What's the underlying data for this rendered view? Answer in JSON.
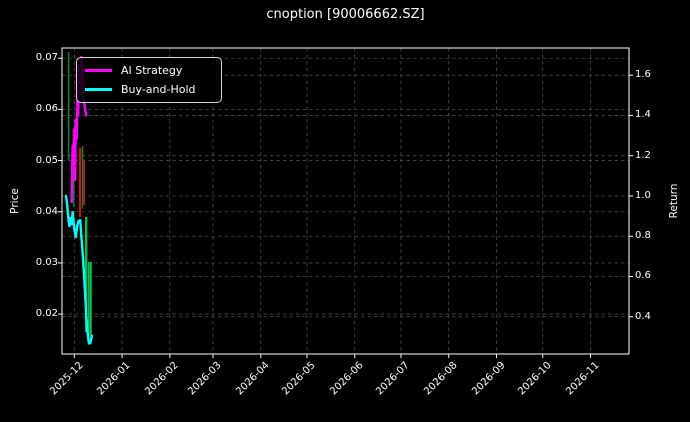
{
  "title": "cnoption [90006662.SZ]",
  "chart_data": {
    "type": "line",
    "overlays": [
      "candlestick_wicks"
    ],
    "title": "cnoption [90006662.SZ]",
    "grid": "dashed, both axes",
    "legend_position": "upper left",
    "axes": {
      "x": {
        "tick_labels": [
          "2025-12",
          "2026-01",
          "2026-02",
          "2026-03",
          "2026-04",
          "2026-05",
          "2026-06",
          "2026-07",
          "2026-08",
          "2026-09",
          "2026-10",
          "2026-11"
        ],
        "tick_days": [
          8,
          39,
          70,
          98,
          129,
          159,
          190,
          220,
          251,
          282,
          312,
          343
        ],
        "range_days": [
          0,
          368
        ],
        "tick_rotation_deg": 45
      },
      "left": {
        "label": "Price",
        "tick_labels": [
          "0.07",
          "0.06",
          "0.05",
          "0.04",
          "0.03",
          "0.02"
        ],
        "tick_values": [
          0.07,
          0.06,
          0.05,
          0.04,
          0.03,
          0.02
        ],
        "range": [
          0.0122,
          0.072
        ]
      },
      "right": {
        "label": "Return",
        "tick_labels": [
          "1.6",
          "1.4",
          "1.2",
          "1.0",
          "0.8",
          "0.6",
          "0.4"
        ],
        "tick_values": [
          1.6,
          1.4,
          1.2,
          1.0,
          0.8,
          0.6,
          0.4
        ],
        "range": [
          0.215,
          1.735
        ]
      }
    },
    "legend": {
      "items": [
        {
          "label": "AI Strategy",
          "color": "#ff00ff"
        },
        {
          "label": "Buy-and-Hold",
          "color": "#00ffff"
        }
      ]
    },
    "series": [
      {
        "name": "AI Strategy",
        "color": "#ff00ff",
        "axis": "right",
        "linewidth": 2.4,
        "points": [
          [
            6.2,
            0.97
          ],
          [
            6.9,
            1.25
          ],
          [
            7.2,
            1.13
          ],
          [
            7.9,
            1.33
          ],
          [
            8.2,
            1.2
          ],
          [
            8.5,
            1.08
          ],
          [
            8.9,
            1.38
          ],
          [
            9.5,
            1.28
          ],
          [
            10.2,
            1.52
          ],
          [
            10.5,
            1.4
          ],
          [
            11.2,
            1.65
          ],
          [
            11.8,
            1.52
          ],
          [
            12.5,
            1.69
          ],
          [
            13.4,
            1.65
          ],
          [
            14.1,
            1.48
          ],
          [
            15.7,
            1.4
          ]
        ]
      },
      {
        "name": "Buy-and-Hold",
        "color": "#00ffff",
        "axis": "right",
        "linewidth": 2.4,
        "points": [
          [
            2.6,
            1.0
          ],
          [
            3.3,
            0.96
          ],
          [
            4.3,
            0.875
          ],
          [
            4.9,
            0.85
          ],
          [
            5.6,
            0.89
          ],
          [
            6.2,
            0.86
          ],
          [
            6.9,
            0.92
          ],
          [
            7.9,
            0.84
          ],
          [
            8.9,
            0.795
          ],
          [
            9.8,
            0.85
          ],
          [
            10.8,
            0.875
          ],
          [
            11.8,
            0.88
          ],
          [
            12.5,
            0.8
          ],
          [
            13.4,
            0.72
          ],
          [
            14.4,
            0.6
          ],
          [
            15.4,
            0.46
          ],
          [
            16.4,
            0.33
          ],
          [
            17.4,
            0.27
          ],
          [
            18.4,
            0.268
          ],
          [
            19.4,
            0.306
          ]
        ]
      }
    ],
    "candles": [
      {
        "day": 4.3,
        "high": 0.0712,
        "low": 0.05,
        "color": "#0b8a2a",
        "w": 1.6
      },
      {
        "day": 7.5,
        "high": 0.056,
        "low": 0.041,
        "color": "#0b8a2a",
        "w": 1.6
      },
      {
        "day": 11.7,
        "high": 0.0525,
        "low": 0.039,
        "color": "#cc1414",
        "w": 2.0
      },
      {
        "day": 13.3,
        "high": 0.0528,
        "low": 0.0405,
        "color": "#0b8a2a",
        "w": 1.6
      },
      {
        "day": 14.4,
        "high": 0.0502,
        "low": 0.0413,
        "color": "#cc1414",
        "w": 1.6
      },
      {
        "day": 15.7,
        "high": 0.039,
        "low": 0.0165,
        "color": "#00c050",
        "w": 2.4
      },
      {
        "day": 17.4,
        "high": 0.0302,
        "low": 0.014,
        "color": "#00c050",
        "w": 1.6
      },
      {
        "day": 18.7,
        "high": 0.0302,
        "low": 0.0158,
        "color": "#00c050",
        "w": 2.0
      }
    ],
    "style": {
      "background": "#000000",
      "text": "#ffffff",
      "grid": "#4a4a4a",
      "spine": "#ffffff"
    }
  }
}
